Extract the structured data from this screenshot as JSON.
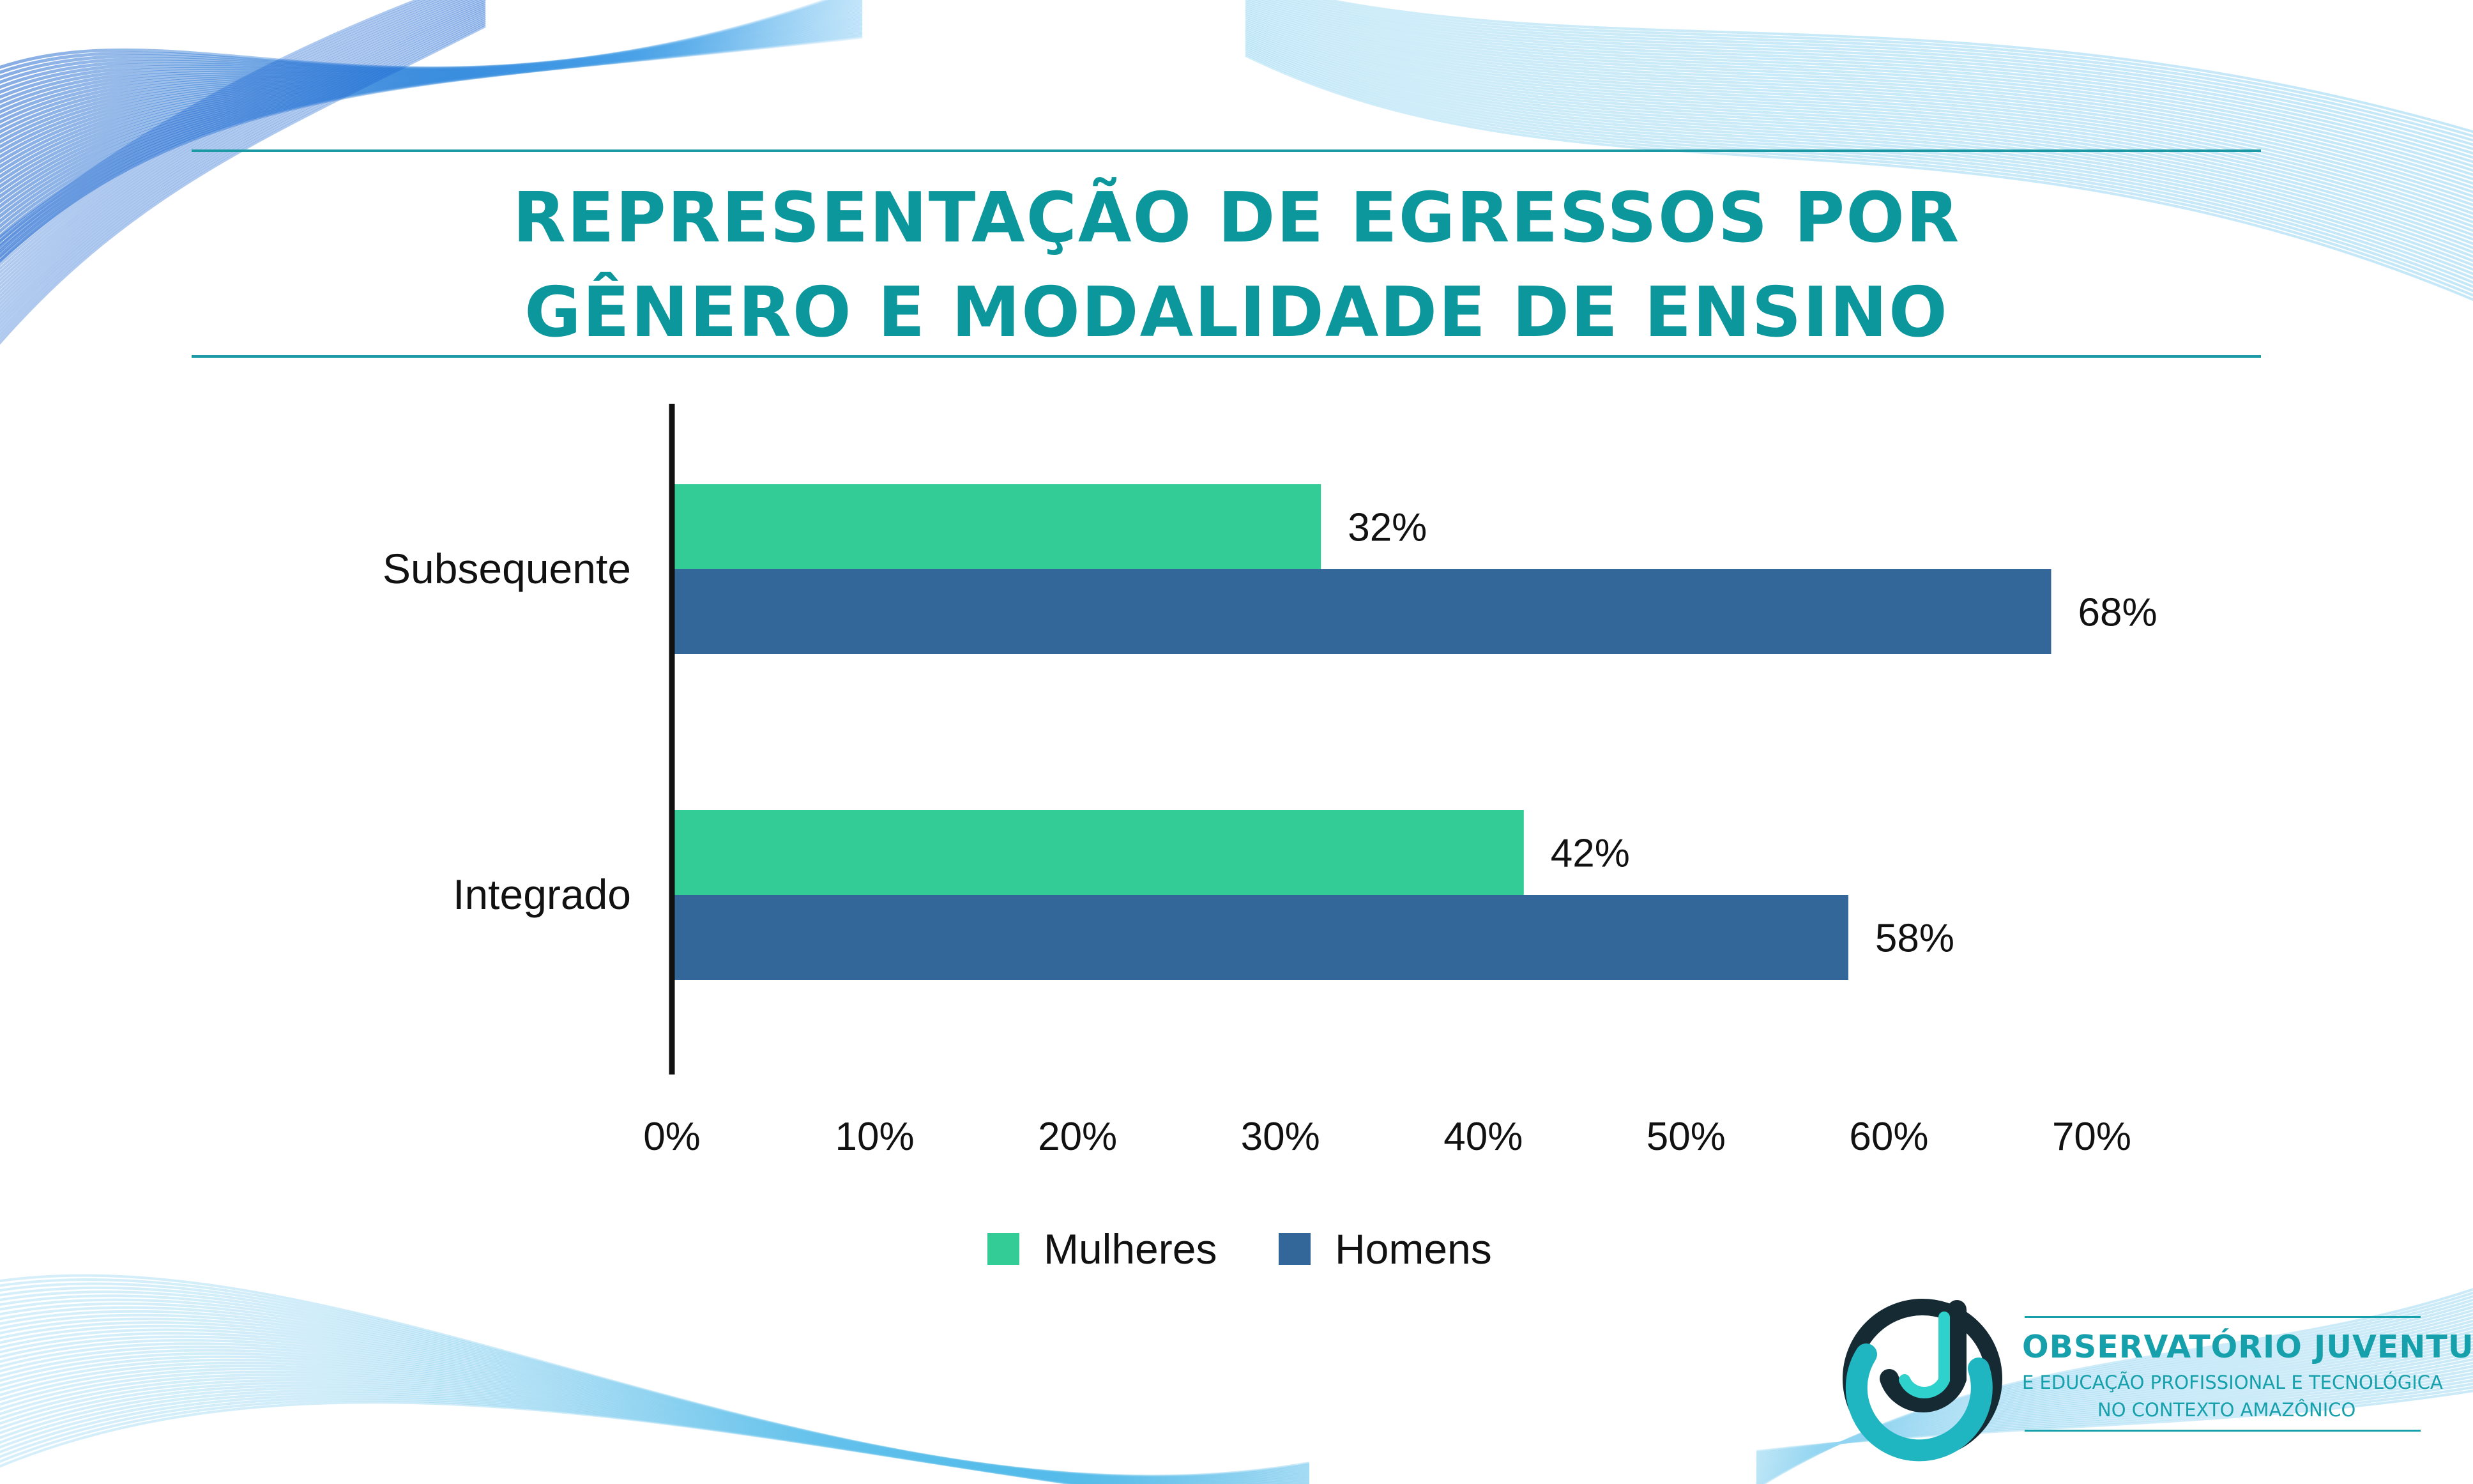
{
  "title": {
    "line1": "REPRESENTAÇÃO DE EGRESSOS POR",
    "line2": "GÊNERO E MODALIDADE DE ENSINO"
  },
  "colors": {
    "title": "#0b979c",
    "mulheres": "#34cc96",
    "homens": "#336699",
    "axis": "#111111",
    "wave_blue": "#1f6fd8",
    "wave_light": "#7fd0ee",
    "logo_teal": "#16a0ab"
  },
  "chart_data": {
    "type": "bar",
    "orientation": "horizontal",
    "categories": [
      "Subsequente",
      "Integrado"
    ],
    "series": [
      {
        "name": "Mulheres",
        "values": [
          32,
          42
        ],
        "labels": [
          "32%",
          "42%"
        ]
      },
      {
        "name": "Homens",
        "values": [
          68,
          58
        ],
        "labels": [
          "68%",
          "58%"
        ]
      }
    ],
    "xlim": [
      0,
      70
    ],
    "xticks": [
      "0%",
      "10%",
      "20%",
      "30%",
      "40%",
      "50%",
      "60%",
      "70%"
    ],
    "grid": false,
    "legend_position": "bottom"
  },
  "logo": {
    "line1": "OBSERVATÓRIO JUVENTUDE",
    "line2": "E EDUCAÇÃO PROFISSIONAL E TECNOLÓGICA",
    "line3": "NO CONTEXTO AMAZÔNICO",
    "icon": "observatorio-j-logo-icon"
  }
}
